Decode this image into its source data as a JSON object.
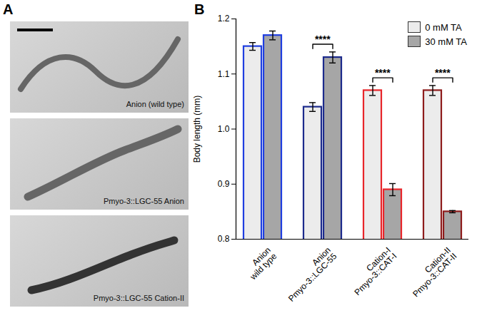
{
  "chart_data": [
    {
      "type": "image",
      "title": "A",
      "annotations": [
        "Anion (wild type)",
        "Pmyo-3::LGC-55 Anion",
        "Pmyo-3::LGC-55 Cation-II"
      ]
    },
    {
      "type": "bar",
      "title": "B",
      "categories": [
        "Anion\nwild type",
        "Anion\nPmyo-3::LGC-55",
        "Cation-I\nPmyo-3::CAT-I",
        "Cation-II\nPmyo-3::CAT-II"
      ],
      "colors": [
        "#1f3ee0",
        "#1c2a8c",
        "#e8252a",
        "#8e1c1c"
      ],
      "series": [
        {
          "name": "0 mM TA",
          "color": "#ececec",
          "values": [
            1.15,
            1.04,
            1.07,
            1.07
          ],
          "errors": [
            0.007,
            0.008,
            0.009,
            0.009
          ]
        },
        {
          "name": "30 mM TA",
          "color": "#a6a6a6",
          "values": [
            1.17,
            1.13,
            0.89,
            0.85
          ],
          "errors": [
            0.008,
            0.01,
            0.011,
            0.002
          ]
        }
      ],
      "y_label": "Body length (mm)",
      "ylim": [
        0.8,
        1.2
      ],
      "yticks": [
        0.8,
        0.9,
        {
          "value": 1,
          "label": "1.0"
        },
        1.1,
        1.2
      ],
      "significance": [
        null,
        "****",
        "****",
        "****"
      ],
      "legend": "top-right"
    }
  ]
}
